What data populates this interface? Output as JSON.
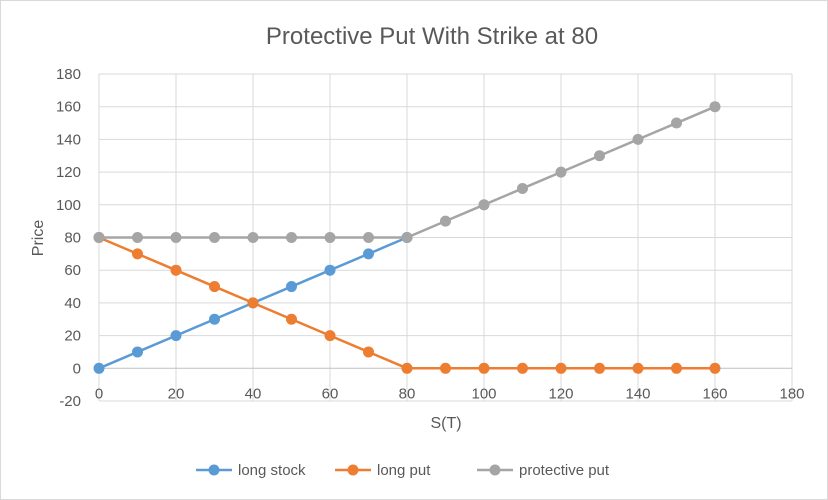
{
  "chart_data": {
    "type": "line",
    "title": "Protective Put With Strike at 80",
    "xlabel": "S(T)",
    "ylabel": "Price",
    "xlim": [
      0,
      180
    ],
    "ylim": [
      -20,
      180
    ],
    "x_ticks": [
      0,
      20,
      40,
      60,
      80,
      100,
      120,
      140,
      160,
      180
    ],
    "y_ticks": [
      -20,
      0,
      20,
      40,
      60,
      80,
      100,
      120,
      140,
      160,
      180
    ],
    "grid": true,
    "legend_position": "bottom",
    "series": [
      {
        "name": "long stock",
        "color": "#5b9bd5",
        "x": [
          0,
          10,
          20,
          30,
          40,
          50,
          60,
          70,
          80
        ],
        "y": [
          0,
          10,
          20,
          30,
          40,
          50,
          60,
          70,
          80
        ]
      },
      {
        "name": "long put",
        "color": "#ed7d31",
        "x": [
          0,
          10,
          20,
          30,
          40,
          50,
          60,
          70,
          80,
          90,
          100,
          110,
          120,
          130,
          140,
          150,
          160
        ],
        "y": [
          80,
          70,
          60,
          50,
          40,
          30,
          20,
          10,
          0,
          0,
          0,
          0,
          0,
          0,
          0,
          0,
          0
        ]
      },
      {
        "name": "protective put",
        "color": "#a5a5a5",
        "x": [
          0,
          10,
          20,
          30,
          40,
          50,
          60,
          70,
          80,
          90,
          100,
          110,
          120,
          130,
          140,
          150,
          160
        ],
        "y": [
          80,
          80,
          80,
          80,
          80,
          80,
          80,
          80,
          80,
          90,
          100,
          110,
          120,
          130,
          140,
          150,
          160
        ]
      }
    ]
  }
}
